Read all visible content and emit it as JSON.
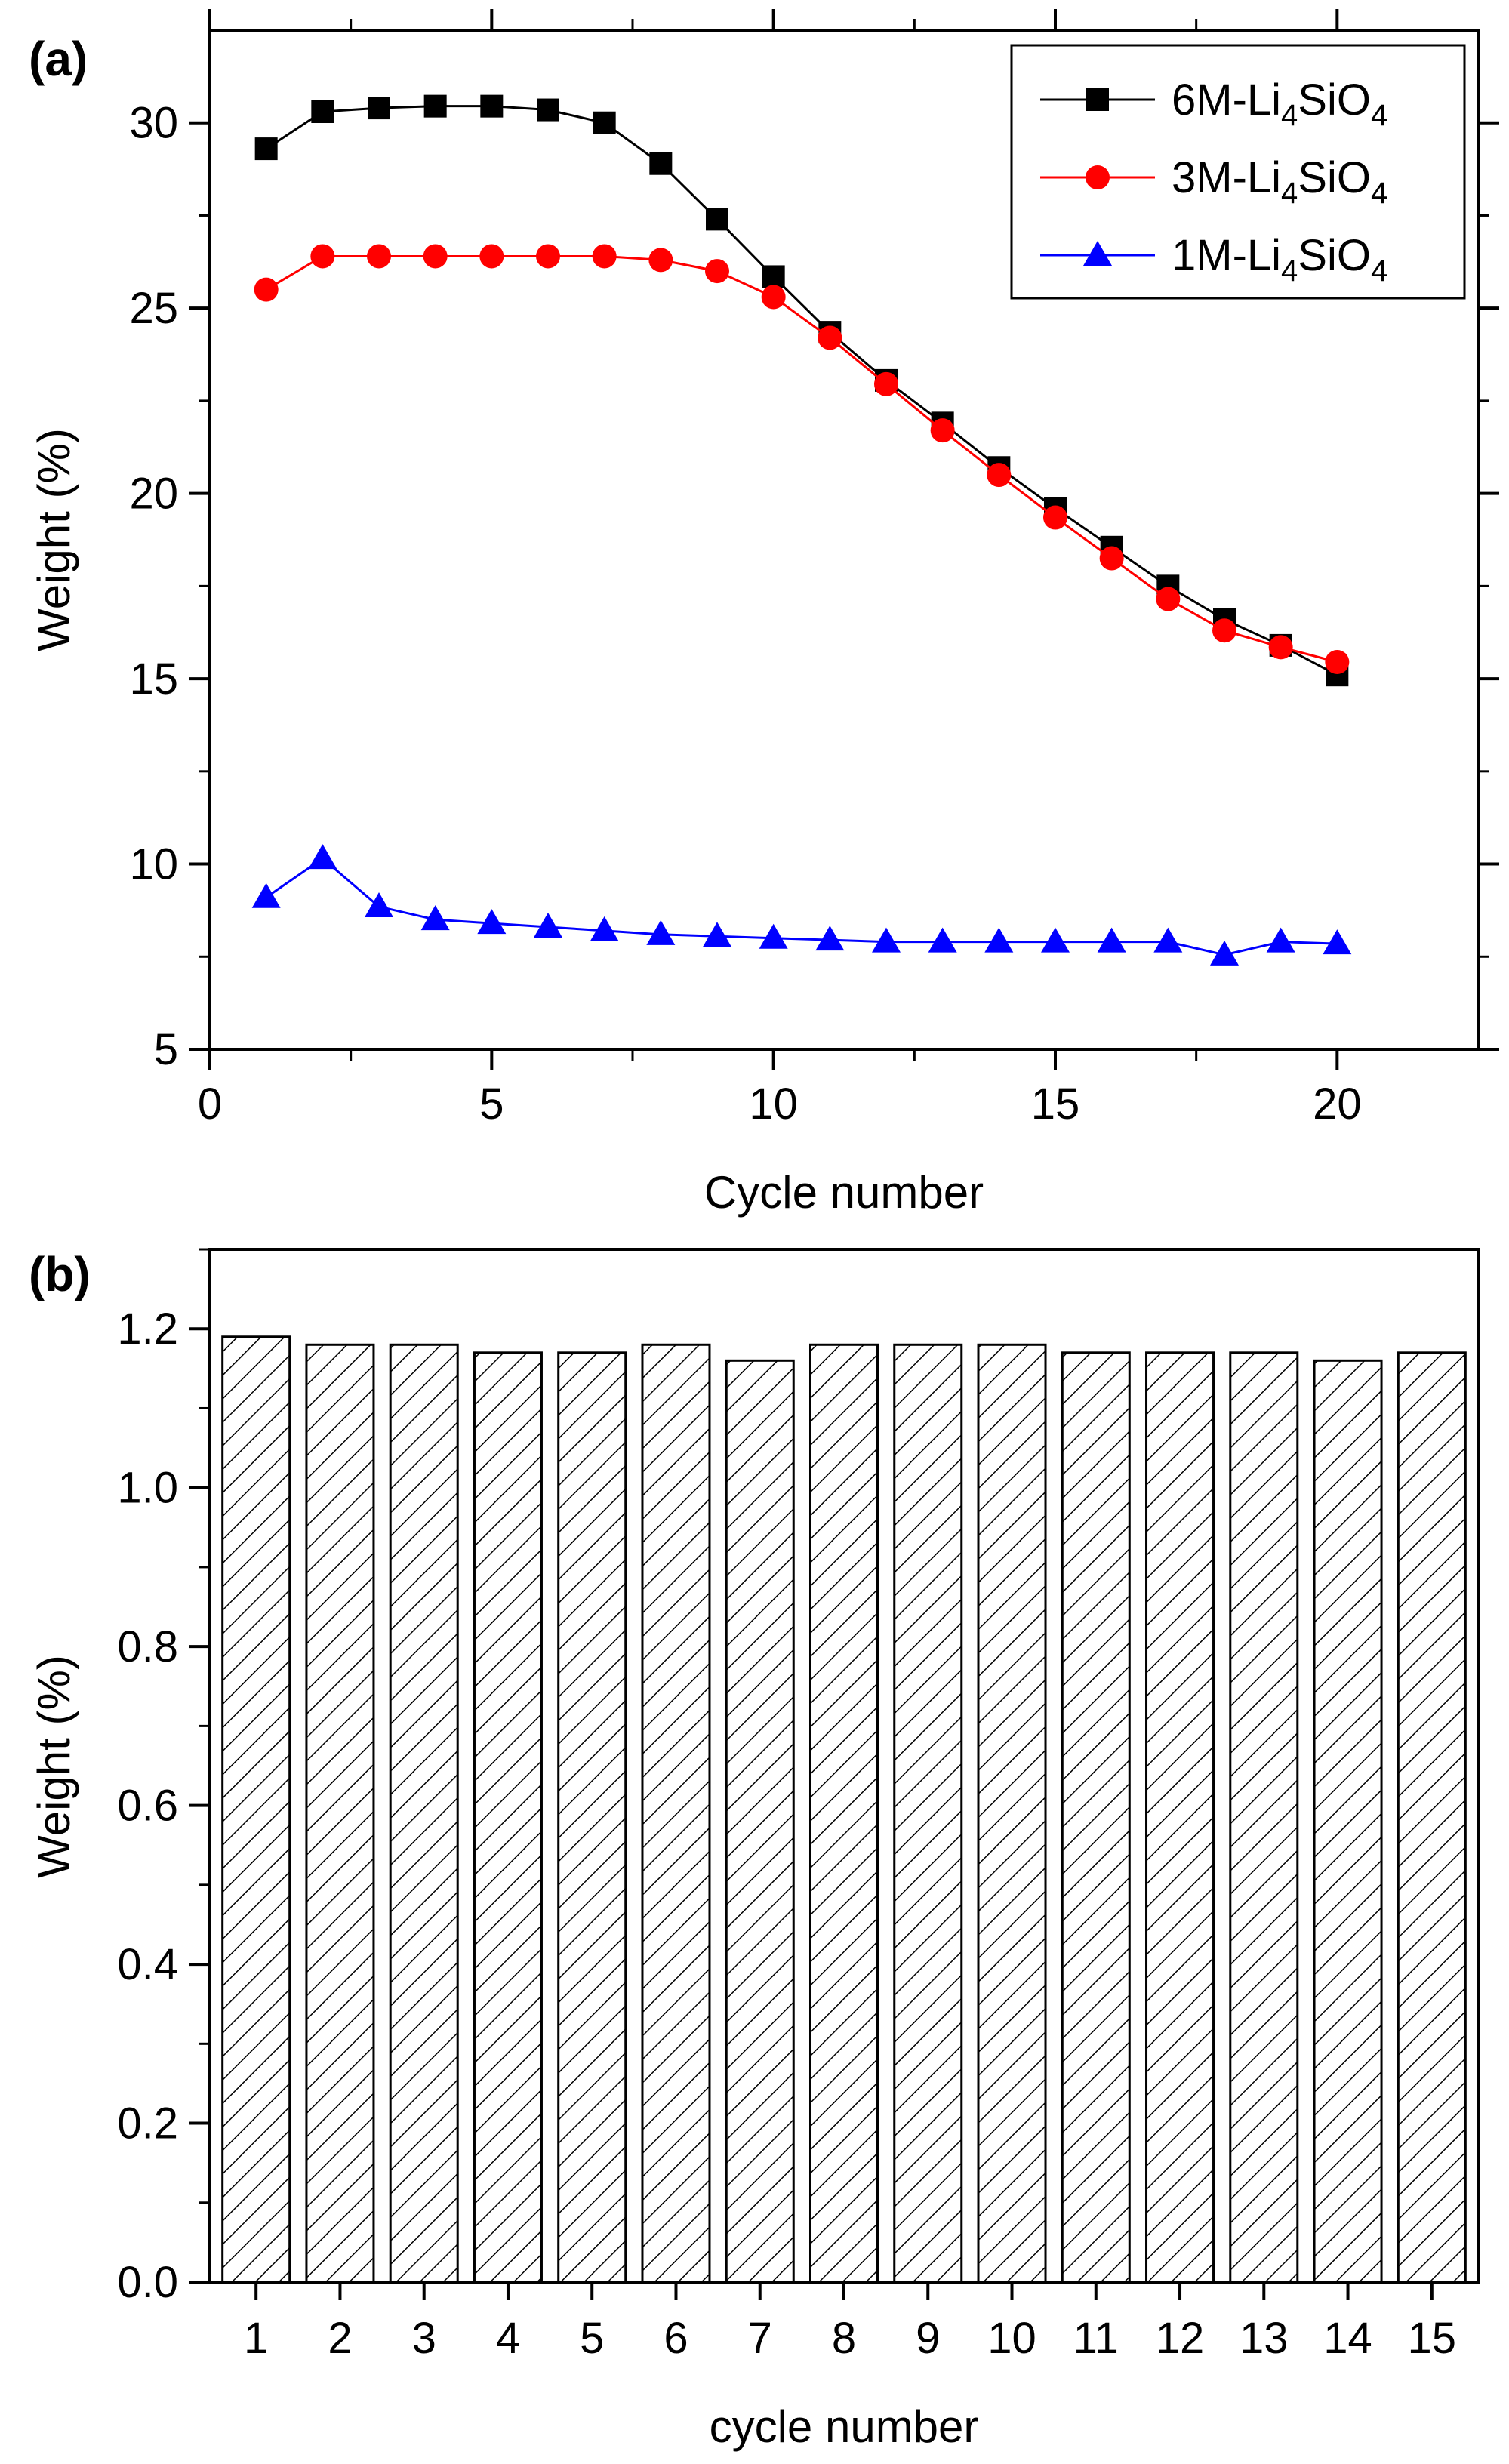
{
  "chart_data": [
    {
      "type": "line",
      "panel_label": "(a)",
      "xlabel": "Cycle number",
      "ylabel": "Weight (%)",
      "xlim": [
        0,
        22.5
      ],
      "ylim": [
        5,
        32.5
      ],
      "xticks": [
        0,
        5,
        10,
        15,
        20
      ],
      "yticks": [
        5,
        10,
        15,
        20,
        25,
        30
      ],
      "grid": false,
      "legend_position": "top-right",
      "x": [
        1,
        2,
        3,
        4,
        5,
        6,
        7,
        8,
        9,
        10,
        11,
        12,
        13,
        14,
        15,
        16,
        17,
        18,
        19,
        20
      ],
      "series": [
        {
          "name": "6M-Li4SiO4",
          "legend_parts": [
            "6M-Li",
            "4",
            "SiO",
            "4"
          ],
          "color": "#000000",
          "marker": "square",
          "values": [
            29.3,
            30.3,
            30.4,
            30.45,
            30.45,
            30.35,
            30.0,
            28.9,
            27.4,
            25.85,
            24.35,
            23.05,
            21.9,
            20.7,
            19.6,
            18.55,
            17.5,
            16.6,
            15.9,
            15.1
          ]
        },
        {
          "name": "3M-Li4SiO4",
          "legend_parts": [
            "3M-Li",
            "4",
            "SiO",
            "4"
          ],
          "color": "#ff0000",
          "marker": "circle",
          "values": [
            25.5,
            26.4,
            26.4,
            26.4,
            26.4,
            26.4,
            26.4,
            26.3,
            26.0,
            25.3,
            24.2,
            22.95,
            21.7,
            20.5,
            19.35,
            18.25,
            17.15,
            16.3,
            15.85,
            15.45
          ]
        },
        {
          "name": "1M-Li4SiO4",
          "legend_parts": [
            "1M-Li",
            "4",
            "SiO",
            "4"
          ],
          "color": "#0000ff",
          "marker": "triangle",
          "values": [
            9.1,
            10.15,
            8.85,
            8.5,
            8.4,
            8.3,
            8.2,
            8.1,
            8.05,
            8.0,
            7.95,
            7.9,
            7.9,
            7.9,
            7.9,
            7.9,
            7.9,
            7.55,
            7.9,
            7.85
          ]
        }
      ]
    },
    {
      "type": "bar",
      "panel_label": "(b)",
      "xlabel": "cycle number",
      "ylabel": "Weight (%)",
      "ylim": [
        0,
        1.3
      ],
      "yticks": [
        "0.0",
        "0.2",
        "0.4",
        "0.6",
        "0.8",
        "1.0",
        "1.2"
      ],
      "grid": false,
      "fill_pattern": "diagonal-hatch",
      "categories": [
        "1",
        "2",
        "3",
        "4",
        "5",
        "6",
        "7",
        "8",
        "9",
        "10",
        "11",
        "12",
        "13",
        "14",
        "15"
      ],
      "values": [
        1.19,
        1.18,
        1.18,
        1.17,
        1.17,
        1.18,
        1.16,
        1.18,
        1.18,
        1.18,
        1.17,
        1.17,
        1.17,
        1.16,
        1.17
      ]
    }
  ]
}
